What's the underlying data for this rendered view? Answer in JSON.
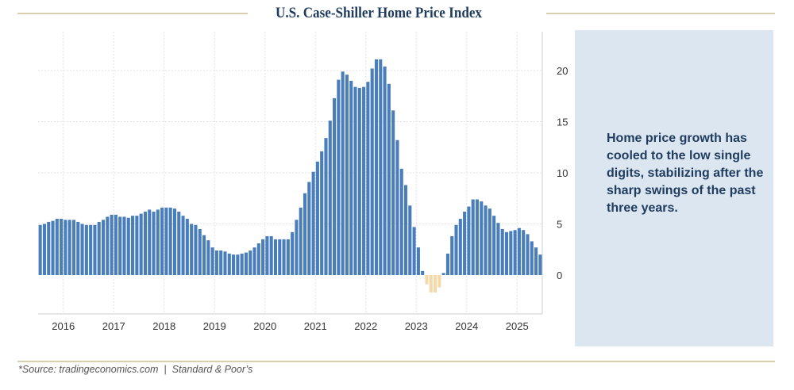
{
  "title": "U.S. Case-Shiller Home Price Index",
  "panel_text": "Home price growth has cooled to the low single digits, stabilizing after the sharp swings of the past three years.",
  "source": "*Source: tradingeconomics.com  |  Standard & Poor’s",
  "colors": {
    "positive": "#4a7ebb",
    "negative": "#f5d9a8",
    "title": "#1f3b5e",
    "panel": "#dce6f1",
    "rule": "#d9cfae"
  },
  "chart_data": {
    "type": "bar",
    "title": "U.S. Case-Shiller Home Price Index",
    "xlabel": "",
    "ylabel": "",
    "x_start": "2015-07",
    "frequency": "monthly",
    "x_tick_labels": [
      "2016",
      "2017",
      "2018",
      "2019",
      "2020",
      "2021",
      "2022",
      "2023",
      "2024",
      "2025"
    ],
    "y_tick_labels": [
      "0",
      "5",
      "10",
      "15",
      "20"
    ],
    "ylim": [
      -3.8,
      23.8
    ],
    "y_axis_side": "right",
    "grid": true,
    "values": [
      4.9,
      5.0,
      5.2,
      5.3,
      5.5,
      5.5,
      5.4,
      5.4,
      5.4,
      5.2,
      5.0,
      4.9,
      4.9,
      4.9,
      5.2,
      5.4,
      5.7,
      5.9,
      5.9,
      5.7,
      5.7,
      5.6,
      5.8,
      5.8,
      6.0,
      6.2,
      6.4,
      6.2,
      6.4,
      6.6,
      6.6,
      6.6,
      6.5,
      6.2,
      5.8,
      5.5,
      5.0,
      4.9,
      4.5,
      3.9,
      3.4,
      2.7,
      2.4,
      2.4,
      2.3,
      2.1,
      2.0,
      2.0,
      2.1,
      2.2,
      2.4,
      2.7,
      3.1,
      3.5,
      3.8,
      3.8,
      3.5,
      3.5,
      3.5,
      3.5,
      4.2,
      5.4,
      6.6,
      8.0,
      9.1,
      10.1,
      11.1,
      12.1,
      13.4,
      15.1,
      17.3,
      19.1,
      19.9,
      19.6,
      19.0,
      18.4,
      18.3,
      18.4,
      18.9,
      20.2,
      21.1,
      21.1,
      20.4,
      18.7,
      16.1,
      13.2,
      10.4,
      8.8,
      6.8,
      4.7,
      2.7,
      0.4,
      -0.9,
      -1.7,
      -1.7,
      -1.2,
      0.2,
      2.1,
      3.8,
      4.9,
      5.5,
      6.2,
      6.7,
      7.4,
      7.4,
      7.2,
      6.8,
      6.5,
      5.8,
      5.1,
      4.5,
      4.2,
      4.3,
      4.4,
      4.6,
      4.4,
      4.0,
      3.3,
      2.7,
      2.0
    ]
  }
}
